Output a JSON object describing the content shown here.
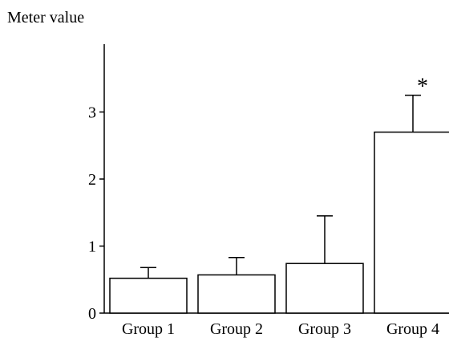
{
  "chart_data": {
    "type": "bar",
    "title": "",
    "xlabel": "",
    "ylabel": "Meter value",
    "categories": [
      "Group 1",
      "Group 2",
      "Group 3",
      "Group 4"
    ],
    "values": [
      0.52,
      0.57,
      0.74,
      2.7
    ],
    "errors": [
      0.16,
      0.26,
      0.71,
      0.55
    ],
    "ylim": [
      0,
      4
    ],
    "yticks": [
      0,
      1,
      2,
      3
    ],
    "ytick_labels": [
      "0",
      "1",
      "2",
      "3"
    ],
    "annotations": [
      {
        "category": "Group 4",
        "text": "*"
      }
    ],
    "grid": false,
    "colors": {
      "bar_fill": "#ffffff",
      "bar_stroke": "#000000",
      "axis": "#000000"
    }
  }
}
